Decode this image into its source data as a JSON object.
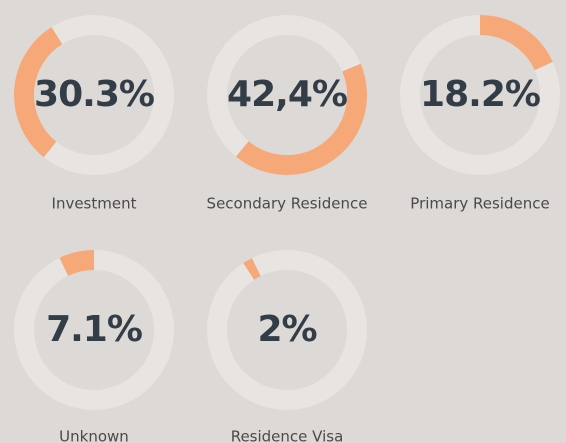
{
  "chart_data": [
    {
      "type": "donut",
      "title": "Investment",
      "values": [
        30.3
      ],
      "value_labels": [
        "30.3%"
      ],
      "color": "#f7a878"
    },
    {
      "type": "donut",
      "title": "Secondary Residence",
      "values": [
        42.4
      ],
      "value_labels": [
        "42,4%"
      ],
      "color": "#f7a878"
    },
    {
      "type": "donut",
      "title": "Primary Residence",
      "values": [
        18.2
      ],
      "value_labels": [
        "18.2%"
      ],
      "color": "#f7a878"
    },
    {
      "type": "donut",
      "title": "Unknown",
      "values": [
        7.1
      ],
      "value_labels": [
        "7.1%"
      ],
      "color": "#f7a878"
    },
    {
      "type": "donut",
      "title": "Residence Visa",
      "values": [
        2
      ],
      "value_labels": [
        "2%"
      ],
      "color": "#f7a878"
    }
  ]
}
